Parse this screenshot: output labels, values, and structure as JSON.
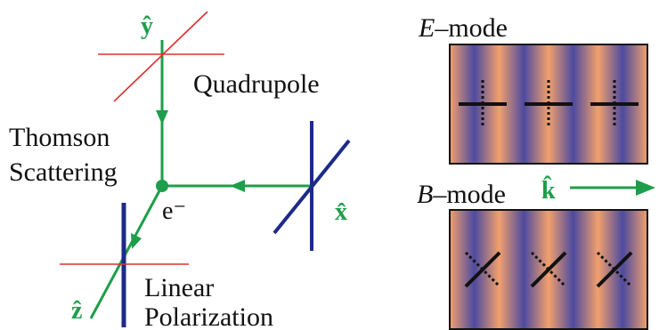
{
  "labels": {
    "y_axis": "ŷ",
    "x_axis": "x̂",
    "z_axis": "ẑ",
    "k_vector": "k̂",
    "quadrupole": "Quadrupole",
    "thomson_line1": "Thomson",
    "thomson_line2": "Scattering",
    "electron": "e⁻",
    "linear_line1": "Linear",
    "linear_line2": "Polarization",
    "e_mode_letter": "E",
    "e_mode_suffix": "–mode",
    "b_mode_letter": "B",
    "b_mode_suffix": "–mode"
  },
  "colors": {
    "green": "#1e9e4a",
    "red": "#e0302e",
    "navy": "#1d2a8a",
    "stripe_blue": "#4d4aa0",
    "stripe_orange": "#f2a06c",
    "frame": "#111111",
    "text": "#111111"
  },
  "e_mode": {
    "pattern_count": 3,
    "pattern": "plus"
  },
  "b_mode": {
    "pattern_count": 3,
    "pattern": "cross"
  }
}
